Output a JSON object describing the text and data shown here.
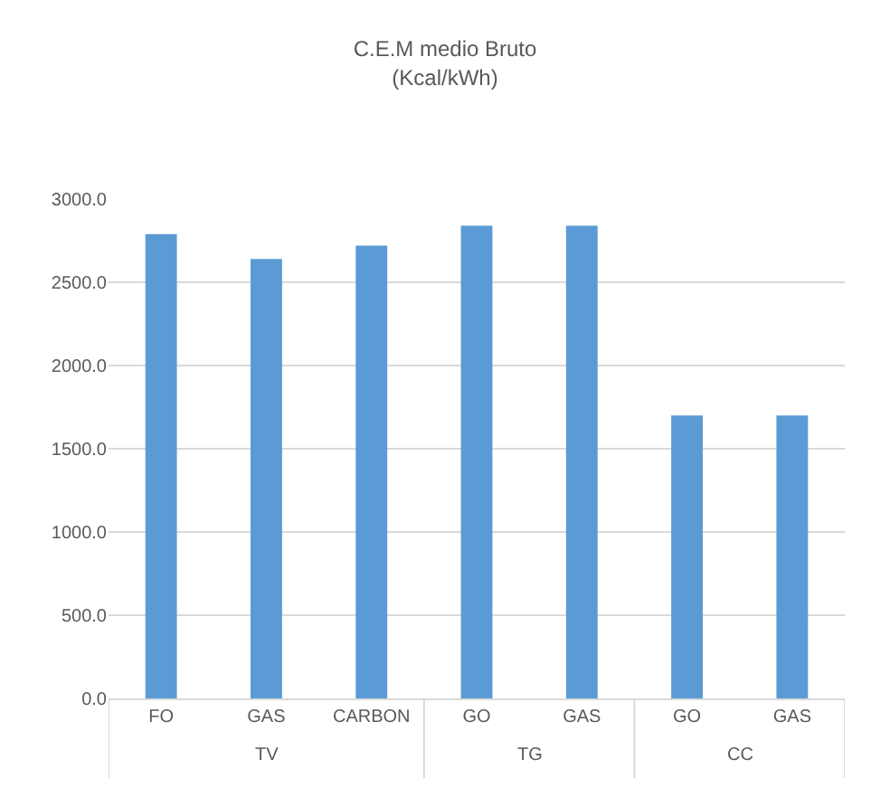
{
  "chart_data": {
    "type": "bar",
    "title": "C.E.M medio Bruto\n(Kcal/kWh)",
    "categories": [
      "FO",
      "GAS",
      "CARBON",
      "GO",
      "GAS",
      "GO",
      "GAS"
    ],
    "annotations": [
      "TV",
      "TG",
      "CC"
    ],
    "values": [
      2790,
      2640,
      2720,
      2840,
      2840,
      1700,
      1700
    ],
    "color": "#5b9bd5",
    "ylim": [
      0,
      3000
    ],
    "yticks": [
      {
        "value": 0,
        "label": "0.0"
      },
      {
        "value": 500,
        "label": "500.0"
      },
      {
        "value": 1000,
        "label": "1000.0"
      },
      {
        "value": 1500,
        "label": "1500.0"
      },
      {
        "value": 2000,
        "label": "2000.0"
      },
      {
        "value": 2500,
        "label": "2500.0"
      },
      {
        "value": 3000,
        "label": "3000.0"
      }
    ],
    "grid": "y"
  }
}
